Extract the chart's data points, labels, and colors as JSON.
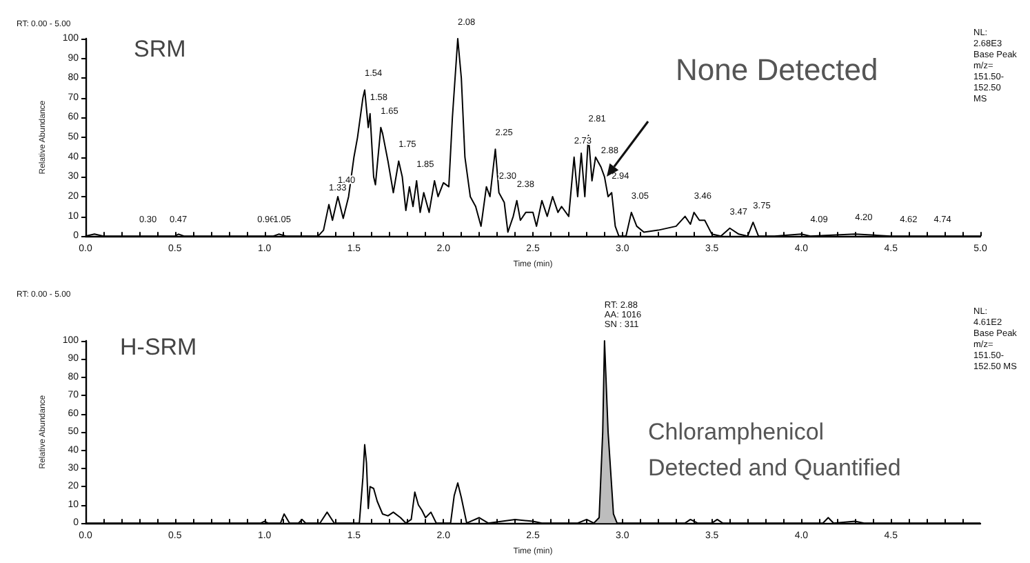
{
  "chart_data": [
    {
      "type": "line",
      "title": "SRM",
      "xlabel": "Time (min)",
      "ylabel": "Relative Abundance",
      "color": "#000000",
      "x": [
        0,
        0.05,
        0.1,
        0.5,
        0.52,
        0.55,
        1.05,
        1.08,
        1.12,
        1.3,
        1.33,
        1.36,
        1.38,
        1.41,
        1.44,
        1.47,
        1.5,
        1.52,
        1.55,
        1.56,
        1.58,
        1.59,
        1.61,
        1.62,
        1.65,
        1.66,
        1.69,
        1.72,
        1.75,
        1.77,
        1.79,
        1.81,
        1.83,
        1.85,
        1.87,
        1.89,
        1.92,
        1.95,
        1.97,
        2.0,
        2.03,
        2.05,
        2.08,
        2.1,
        2.12,
        2.15,
        2.18,
        2.21,
        2.24,
        2.26,
        2.29,
        2.31,
        2.34,
        2.36,
        2.39,
        2.41,
        2.43,
        2.46,
        2.5,
        2.52,
        2.55,
        2.58,
        2.61,
        2.64,
        2.66,
        2.7,
        2.73,
        2.75,
        2.77,
        2.79,
        2.81,
        2.83,
        2.85,
        2.88,
        2.9,
        2.92,
        2.94,
        2.96,
        2.98,
        3.02,
        3.05,
        3.08,
        3.12,
        3.2,
        3.3,
        3.35,
        3.38,
        3.4,
        3.43,
        3.46,
        3.5,
        3.55,
        3.6,
        3.65,
        3.7,
        3.73,
        3.76,
        3.85,
        4.0,
        4.05,
        4.3,
        4.5,
        4.74,
        5.0
      ],
      "values": [
        0,
        1,
        0,
        0,
        1,
        0,
        0,
        1,
        0,
        0,
        3,
        16,
        8,
        20,
        9,
        20,
        40,
        50,
        70,
        74,
        55,
        62,
        30,
        26,
        55,
        52,
        38,
        22,
        38,
        30,
        13,
        25,
        15,
        28,
        12,
        22,
        12,
        28,
        20,
        27,
        25,
        60,
        100,
        80,
        40,
        20,
        15,
        5,
        25,
        20,
        44,
        22,
        17,
        2,
        10,
        18,
        8,
        12,
        12,
        5,
        18,
        10,
        20,
        12,
        15,
        10,
        40,
        20,
        42,
        20,
        51,
        28,
        40,
        35,
        30,
        20,
        22,
        5,
        0,
        0,
        12,
        5,
        2,
        3,
        5,
        10,
        6,
        12,
        8,
        8,
        1,
        0,
        4,
        1,
        0,
        7,
        0,
        0,
        1,
        0,
        1,
        0,
        0,
        0
      ],
      "xlim": [
        0,
        5
      ],
      "xticks": [
        {
          "value": 0,
          "label": "0.0"
        },
        {
          "value": 0.1,
          "label": null
        },
        {
          "value": 0.2,
          "label": null
        },
        {
          "value": 0.3,
          "label": null
        },
        {
          "value": 0.4,
          "label": null
        },
        {
          "value": 0.5,
          "label": "0.5"
        },
        {
          "value": 0.6,
          "label": null
        },
        {
          "value": 0.7,
          "label": null
        },
        {
          "value": 0.8,
          "label": null
        },
        {
          "value": 0.9,
          "label": null
        },
        {
          "value": 1,
          "label": "1.0"
        },
        {
          "value": 1.1,
          "label": null
        },
        {
          "value": 1.2,
          "label": null
        },
        {
          "value": 1.3,
          "label": null
        },
        {
          "value": 1.4,
          "label": null
        },
        {
          "value": 1.5,
          "label": "1.5"
        },
        {
          "value": 1.6,
          "label": null
        },
        {
          "value": 1.7,
          "label": null
        },
        {
          "value": 1.8,
          "label": null
        },
        {
          "value": 1.9,
          "label": null
        },
        {
          "value": 2,
          "label": "2.0"
        },
        {
          "value": 2.1,
          "label": null
        },
        {
          "value": 2.2,
          "label": null
        },
        {
          "value": 2.3,
          "label": null
        },
        {
          "value": 2.4,
          "label": null
        },
        {
          "value": 2.5,
          "label": "2.5"
        },
        {
          "value": 2.6,
          "label": null
        },
        {
          "value": 2.7,
          "label": null
        },
        {
          "value": 2.8,
          "label": null
        },
        {
          "value": 2.9,
          "label": null
        },
        {
          "value": 3,
          "label": "3.0"
        },
        {
          "value": 3.1,
          "label": null
        },
        {
          "value": 3.2,
          "label": null
        },
        {
          "value": 3.3,
          "label": null
        },
        {
          "value": 3.4,
          "label": null
        },
        {
          "value": 3.5,
          "label": "3.5"
        },
        {
          "value": 3.6,
          "label": null
        },
        {
          "value": 3.7,
          "label": null
        },
        {
          "value": 3.8,
          "label": null
        },
        {
          "value": 3.9,
          "label": null
        },
        {
          "value": 4,
          "label": "4.0"
        },
        {
          "value": 4.1,
          "label": null
        },
        {
          "value": 4.2,
          "label": null
        },
        {
          "value": 4.3,
          "label": null
        },
        {
          "value": 4.4,
          "label": null
        },
        {
          "value": 4.5,
          "label": "4.5"
        },
        {
          "value": 4.6,
          "label": null
        },
        {
          "value": 4.7,
          "label": null
        },
        {
          "value": 4.8,
          "label": null
        },
        {
          "value": 4.9,
          "label": null
        },
        {
          "value": 5,
          "label": "5.0"
        }
      ],
      "ylim": [
        0,
        100
      ],
      "yticks": [
        0,
        10,
        20,
        30,
        40,
        50,
        60,
        70,
        80,
        90,
        100
      ],
      "annotations": [
        "RT: 0.00 - 5.00",
        "None Detected",
        "NL:\n2.68E3\nBase Peak\nm/z=\n151.50-\n152.50\nMS",
        {
          "text": "0.30",
          "x": 0.3,
          "y": 0
        },
        {
          "text": "0.47",
          "x": 0.47,
          "y": 0
        },
        {
          "text": "0.96",
          "x": 0.96,
          "y": 0
        },
        {
          "text": "1.05",
          "x": 1.05,
          "y": 0
        },
        {
          "text": "1.33",
          "x": 1.36,
          "y": 16
        },
        {
          "text": "1.40",
          "x": 1.41,
          "y": 20
        },
        {
          "text": "1.54",
          "x": 1.56,
          "y": 74
        },
        {
          "text": "1.58",
          "x": 1.59,
          "y": 62
        },
        {
          "text": "1.65",
          "x": 1.65,
          "y": 55
        },
        {
          "text": "1.75",
          "x": 1.75,
          "y": 38
        },
        {
          "text": "1.85",
          "x": 1.85,
          "y": 28
        },
        {
          "text": "2.08",
          "x": 2.08,
          "y": 100
        },
        {
          "text": "2.25",
          "x": 2.29,
          "y": 44
        },
        {
          "text": "2.30",
          "x": 2.31,
          "y": 22
        },
        {
          "text": "2.38",
          "x": 2.41,
          "y": 18
        },
        {
          "text": "2.73",
          "x": 2.73,
          "y": 40
        },
        {
          "text": "2.81",
          "x": 2.81,
          "y": 51
        },
        {
          "text": "2.88",
          "x": 2.88,
          "y": 35
        },
        {
          "text": "2.94",
          "x": 2.94,
          "y": 22
        },
        {
          "text": "3.05",
          "x": 3.05,
          "y": 12
        },
        {
          "text": "3.46",
          "x": 3.4,
          "y": 12
        },
        {
          "text": "3.47",
          "x": 3.6,
          "y": 4
        },
        {
          "text": "3.75",
          "x": 3.73,
          "y": 7
        },
        {
          "text": "4.09",
          "x": 4.05,
          "y": 0
        },
        {
          "text": "4.20",
          "x": 4.3,
          "y": 1
        },
        {
          "text": "4.62",
          "x": 4.55,
          "y": 0
        },
        {
          "text": "4.74",
          "x": 4.74,
          "y": 0
        }
      ]
    },
    {
      "type": "line",
      "title": "H-SRM",
      "xlabel": "Time (min)",
      "ylabel": "Relative Abundance",
      "series": [
        {
          "color": "#000000",
          "x": [
            0,
            0.98,
            1.0,
            1.02,
            1.09,
            1.11,
            1.14,
            1.19,
            1.21,
            1.23,
            1.31,
            1.35,
            1.39,
            1.53,
            1.55,
            1.56,
            1.57,
            1.58,
            1.59,
            1.61,
            1.63,
            1.66,
            1.69,
            1.72,
            1.76,
            1.79,
            1.82,
            1.84,
            1.86,
            1.88,
            1.9,
            1.93,
            1.96,
            2.04,
            2.06,
            2.08,
            2.1,
            2.13,
            2.2,
            2.25,
            2.4,
            2.5,
            2.55,
            2.75,
            2.8,
            2.84,
            2.87,
            2.89,
            2.9,
            2.92,
            2.95,
            2.97,
            3.35,
            3.38,
            3.42,
            3.5,
            3.53,
            3.56,
            4.12,
            4.15,
            4.18,
            4.3,
            4.35,
            5.0
          ],
          "values": [
            0,
            0,
            1,
            0,
            0,
            5,
            0,
            0,
            2,
            0,
            0,
            6,
            0,
            0,
            25,
            43,
            33,
            8,
            20,
            19,
            12,
            5,
            4,
            6,
            3,
            0,
            2,
            17,
            10,
            7,
            3,
            6,
            0,
            0,
            15,
            22,
            14,
            0,
            3,
            0,
            2,
            1,
            0,
            0,
            2,
            0,
            3,
            50,
            100,
            50,
            5,
            0,
            0,
            2,
            0,
            0,
            2,
            0,
            0,
            3,
            0,
            1,
            0,
            0
          ]
        },
        {
          "type": "area",
          "color": "#bdbdbd",
          "x": [
            2.84,
            2.87,
            2.89,
            2.9,
            2.92,
            2.95,
            2.97
          ],
          "values": [
            0,
            3,
            50,
            100,
            50,
            5,
            0
          ]
        }
      ],
      "xlim": [
        0,
        5
      ],
      "xticks": [
        {
          "value": 0,
          "label": "0.0"
        },
        {
          "value": 0.1,
          "label": null
        },
        {
          "value": 0.2,
          "label": null
        },
        {
          "value": 0.3,
          "label": null
        },
        {
          "value": 0.4,
          "label": null
        },
        {
          "value": 0.5,
          "label": "0.5"
        },
        {
          "value": 0.6,
          "label": null
        },
        {
          "value": 0.7,
          "label": null
        },
        {
          "value": 0.8,
          "label": null
        },
        {
          "value": 0.9,
          "label": null
        },
        {
          "value": 1,
          "label": "1.0"
        },
        {
          "value": 1.1,
          "label": null
        },
        {
          "value": 1.2,
          "label": null
        },
        {
          "value": 1.3,
          "label": null
        },
        {
          "value": 1.4,
          "label": null
        },
        {
          "value": 1.5,
          "label": "1.5"
        },
        {
          "value": 1.6,
          "label": null
        },
        {
          "value": 1.7,
          "label": null
        },
        {
          "value": 1.8,
          "label": null
        },
        {
          "value": 1.9,
          "label": null
        },
        {
          "value": 2,
          "label": "2.0"
        },
        {
          "value": 2.1,
          "label": null
        },
        {
          "value": 2.2,
          "label": null
        },
        {
          "value": 2.3,
          "label": null
        },
        {
          "value": 2.4,
          "label": null
        },
        {
          "value": 2.5,
          "label": "2.5"
        },
        {
          "value": 2.6,
          "label": null
        },
        {
          "value": 2.7,
          "label": null
        },
        {
          "value": 2.8,
          "label": null
        },
        {
          "value": 2.9,
          "label": null
        },
        {
          "value": 3,
          "label": "3.0"
        },
        {
          "value": 3.1,
          "label": null
        },
        {
          "value": 3.2,
          "label": null
        },
        {
          "value": 3.3,
          "label": null
        },
        {
          "value": 3.4,
          "label": null
        },
        {
          "value": 3.5,
          "label": "3.5"
        },
        {
          "value": 3.6,
          "label": null
        },
        {
          "value": 3.7,
          "label": null
        },
        {
          "value": 3.8,
          "label": null
        },
        {
          "value": 3.9,
          "label": null
        },
        {
          "value": 4,
          "label": "4.0"
        },
        {
          "value": 4.1,
          "label": null
        },
        {
          "value": 4.2,
          "label": null
        },
        {
          "value": 4.3,
          "label": null
        },
        {
          "value": 4.4,
          "label": null
        },
        {
          "value": 4.5,
          "label": "4.5"
        },
        {
          "value": 4.6,
          "label": null
        },
        {
          "value": 4.7,
          "label": null
        },
        {
          "value": 4.8,
          "label": null
        },
        {
          "value": 4.9,
          "label": null
        }
      ],
      "ylim": [
        0,
        100
      ],
      "yticks": [
        0,
        10,
        20,
        30,
        40,
        50,
        60,
        70,
        80,
        90,
        100
      ],
      "annotations": [
        "RT: 0.00 - 5.00",
        "Chloramphenicol\nDetected and Quantified",
        "NL:\n4.61E2\nBase Peak\nm/z=\n151.50-\n152.50 MS",
        {
          "text": "RT: 2.88\nAA: 1016\nSN : 311",
          "x": 2.9,
          "y": 100
        }
      ]
    }
  ]
}
